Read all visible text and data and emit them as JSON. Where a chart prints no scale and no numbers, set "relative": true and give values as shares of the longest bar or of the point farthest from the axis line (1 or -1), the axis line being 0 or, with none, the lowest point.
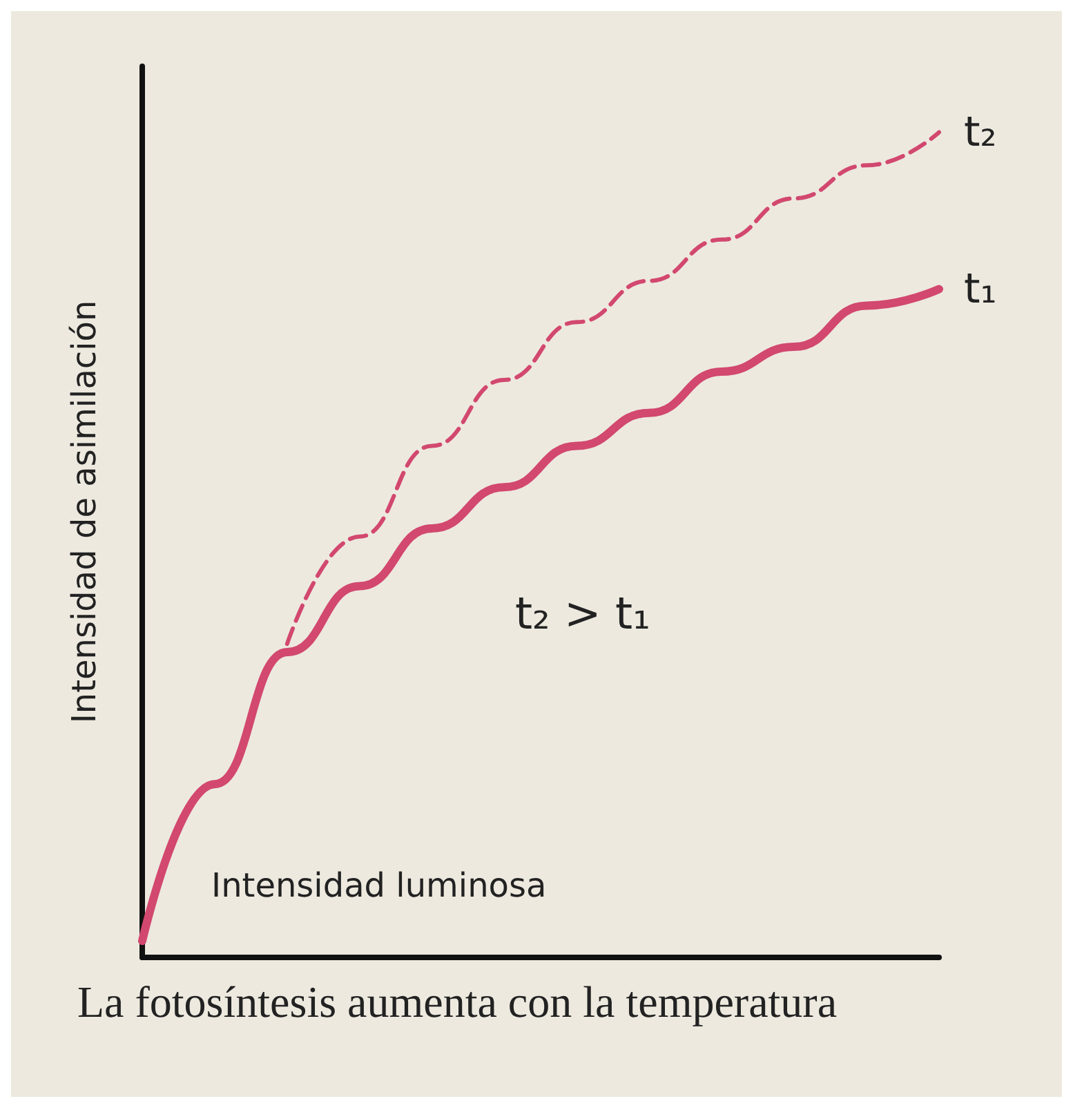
{
  "chart_data": {
    "type": "line",
    "relative": true,
    "xlabel": "Intensidad luminosa",
    "ylabel": "Intensidad de asimilación",
    "categories": [
      null,
      null,
      null,
      null,
      null,
      null,
      null,
      null,
      null,
      null,
      null,
      null
    ],
    "series": [
      {
        "name": "t₂",
        "color": "#d2486f",
        "line_style": "dashed",
        "values": [
          null,
          null,
          0.38,
          0.51,
          0.62,
          0.7,
          0.77,
          0.82,
          0.87,
          0.92,
          0.96,
          1
        ]
      },
      {
        "name": "t₁",
        "color": "#d2486f",
        "line_style": "solid",
        "values": [
          0.02,
          0.21,
          0.37,
          0.45,
          0.52,
          0.57,
          0.62,
          0.66,
          0.71,
          0.74,
          0.79,
          0.81
        ]
      }
    ],
    "marker": "none",
    "legend": false,
    "grid": false,
    "annotations": [
      "t₂ > t₁",
      "La fotosíntesis aumenta con la temperatura"
    ]
  }
}
